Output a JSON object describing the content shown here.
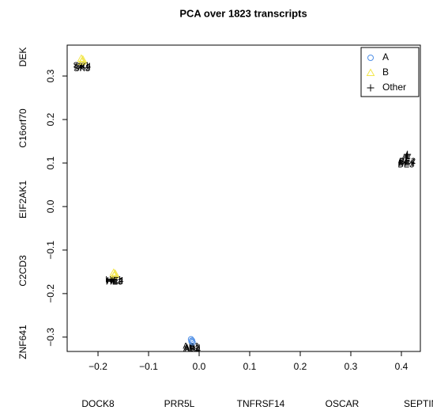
{
  "chart_data": {
    "type": "scatter",
    "title": "PCA over 1823 transcripts",
    "xlim": [
      -0.261,
      0.4375
    ],
    "ylim": [
      -0.333,
      0.371
    ],
    "xticks": [
      {
        "value": -0.2,
        "label": "−0.2"
      },
      {
        "value": -0.1,
        "label": "−0.1"
      },
      {
        "value": 0,
        "label": "0.0"
      },
      0.1,
      0.2,
      0.3,
      0.4
    ],
    "yticks": [
      {
        "value": -0.3,
        "label": "−0.3"
      },
      {
        "value": -0.2,
        "label": "−0.2"
      },
      {
        "value": -0.1,
        "label": "−0.1"
      },
      {
        "value": 0,
        "label": "0.0"
      },
      0.1,
      0.2,
      0.3
    ],
    "left_labels": [
      "DEK",
      "C16orf70",
      "EIF2AK1",
      "C2CD3",
      "ZNF641"
    ],
    "bottom_labels": [
      "DOCK8",
      "PRR5L",
      "TNFRSF14",
      "OSCAR",
      "SEPTIN6"
    ],
    "legend": "topright",
    "series": [
      {
        "name": "A",
        "color": "#4f8fe6",
        "marker": "circle",
        "x": [
          -0.016,
          -0.015,
          -0.014,
          -0.013
        ],
        "values": [
          -0.305,
          -0.31,
          -0.308,
          -0.312
        ],
        "labels": [
          "AB1",
          "AB2",
          "AB3",
          "AB4"
        ]
      },
      {
        "name": "B",
        "color": "#f2e64a",
        "marker": "triangle",
        "x": [
          -0.233,
          -0.231,
          -0.232,
          -0.23,
          -0.169,
          -0.167,
          -0.168,
          -0.166
        ],
        "values": [
          0.34,
          0.335,
          0.333,
          0.338,
          -0.152,
          -0.156,
          -0.158,
          -0.154
        ],
        "labels": [
          "SK1",
          "SK2",
          "SK3",
          "SK4",
          "HE1",
          "HE2",
          "HE3",
          "HE4"
        ]
      },
      {
        "name": "Other",
        "color": "#000000",
        "marker": "plus",
        "x": [
          0.41,
          0.412,
          0.409,
          0.411
        ],
        "values": [
          0.115,
          0.12,
          0.112,
          0.118
        ],
        "labels": [
          "BE1",
          "BE2",
          "BE3",
          "BE4"
        ]
      }
    ]
  }
}
